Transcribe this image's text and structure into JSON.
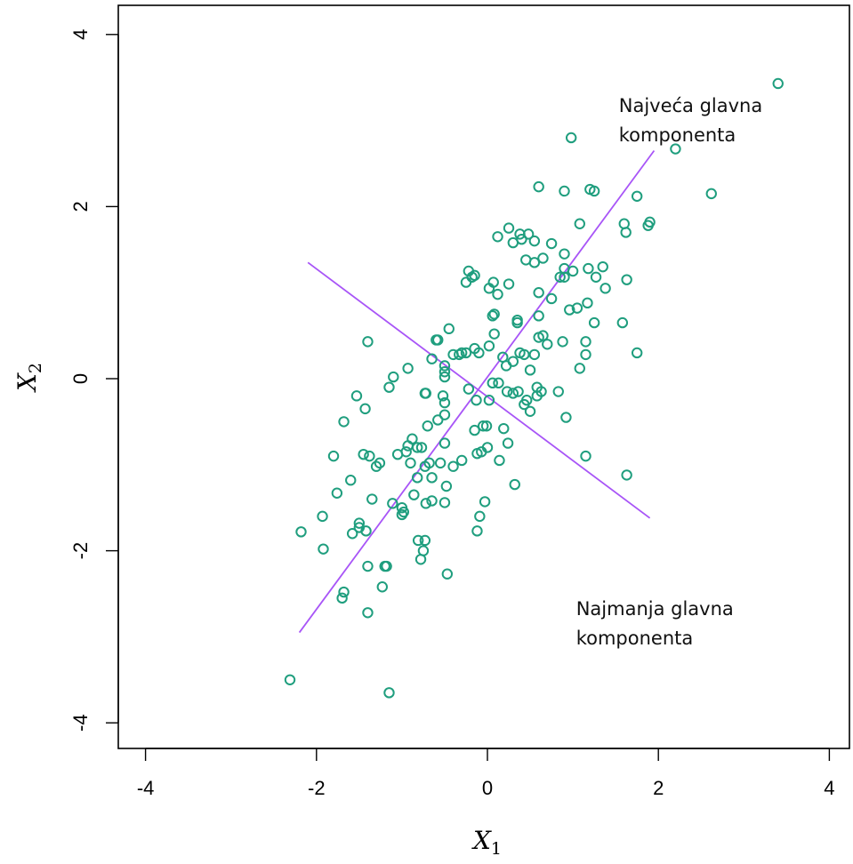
{
  "chart_data": {
    "type": "scatter",
    "title": "",
    "xlabel": "X",
    "xlabel_sub": "1",
    "ylabel": "X",
    "ylabel_sub": "2",
    "xlim": [
      -4.2,
      4.2
    ],
    "ylim": [
      -4.3,
      4.3
    ],
    "xticks": [
      -4,
      -2,
      0,
      2,
      4
    ],
    "yticks": [
      -4,
      -2,
      0,
      2,
      4
    ],
    "xtick_labels": [
      "-4",
      "-2",
      "0",
      "2",
      "4"
    ],
    "ytick_labels": [
      "-4",
      "-2",
      "0",
      "2",
      "4"
    ],
    "grid": false,
    "point_color": "#1f9e7e",
    "line_color": "#a855f7",
    "lines": [
      {
        "x": [
          -2.2,
          1.95
        ],
        "y": [
          -2.95,
          2.65
        ]
      },
      {
        "x": [
          -2.1,
          1.9
        ],
        "y": [
          1.35,
          -1.62
        ]
      }
    ],
    "annotations": [
      {
        "line1": "Najveća glavna",
        "line2": "komponenta",
        "x": 1.6,
        "y": 3.1
      },
      {
        "line1": "Najmanja glavna",
        "line2": "komponenta",
        "x": 1.1,
        "y": -2.75
      }
    ],
    "points": [
      [
        -2.31,
        -3.5
      ],
      [
        -1.15,
        -3.65
      ],
      [
        -1.7,
        -2.55
      ],
      [
        -1.68,
        -2.48
      ],
      [
        -1.4,
        -2.72
      ],
      [
        -1.23,
        -2.42
      ],
      [
        -1.2,
        -2.18
      ],
      [
        -1.18,
        -2.18
      ],
      [
        -1.4,
        -2.18
      ],
      [
        -0.78,
        -2.1
      ],
      [
        -0.75,
        -2.0
      ],
      [
        -0.47,
        -2.27
      ],
      [
        -0.81,
        -1.88
      ],
      [
        -0.73,
        -1.88
      ],
      [
        -1.92,
        -1.98
      ],
      [
        -1.93,
        -1.6
      ],
      [
        -2.18,
        -1.78
      ],
      [
        -1.58,
        -1.8
      ],
      [
        -1.5,
        -1.68
      ],
      [
        -1.42,
        -1.77
      ],
      [
        -1.5,
        -1.73
      ],
      [
        -1.35,
        -1.4
      ],
      [
        -1.11,
        -1.45
      ],
      [
        -1.0,
        -1.58
      ],
      [
        -0.98,
        -1.55
      ],
      [
        -1.0,
        -1.5
      ],
      [
        -0.86,
        -1.35
      ],
      [
        -0.65,
        -1.42
      ],
      [
        -0.72,
        -1.45
      ],
      [
        -0.5,
        -1.44
      ],
      [
        -0.12,
        -1.77
      ],
      [
        -0.09,
        -1.6
      ],
      [
        -0.03,
        -1.43
      ],
      [
        -1.76,
        -1.33
      ],
      [
        -1.6,
        -1.18
      ],
      [
        -0.82,
        -1.15
      ],
      [
        -0.65,
        -1.15
      ],
      [
        -0.48,
        -1.25
      ],
      [
        -0.4,
        -1.02
      ],
      [
        -0.3,
        -0.95
      ],
      [
        -0.73,
        -1.02
      ],
      [
        -0.68,
        -0.98
      ],
      [
        -0.55,
        -0.98
      ],
      [
        -0.9,
        -0.98
      ],
      [
        -0.95,
        -0.85
      ],
      [
        -1.05,
        -0.88
      ],
      [
        -1.3,
        -1.02
      ],
      [
        -1.26,
        -0.98
      ],
      [
        -1.38,
        -0.9
      ],
      [
        -1.45,
        -0.88
      ],
      [
        -1.8,
        -0.9
      ],
      [
        -0.88,
        -0.7
      ],
      [
        -0.93,
        -0.78
      ],
      [
        -0.82,
        -0.8
      ],
      [
        -0.77,
        -0.8
      ],
      [
        -0.5,
        -0.75
      ],
      [
        -0.7,
        -0.55
      ],
      [
        -0.58,
        -0.48
      ],
      [
        -0.5,
        -0.42
      ],
      [
        -0.12,
        -0.87
      ],
      [
        -0.07,
        -0.85
      ],
      [
        0.0,
        -0.8
      ],
      [
        0.14,
        -0.95
      ],
      [
        0.24,
        -0.75
      ],
      [
        0.32,
        -1.23
      ],
      [
        0.19,
        -0.58
      ],
      [
        -0.01,
        -0.55
      ],
      [
        -0.05,
        -0.55
      ],
      [
        -0.15,
        -0.6
      ],
      [
        -1.68,
        -0.5
      ],
      [
        -1.53,
        -0.2
      ],
      [
        -1.43,
        -0.35
      ],
      [
        -1.15,
        -0.1
      ],
      [
        -0.93,
        0.12
      ],
      [
        -0.73,
        -0.17
      ],
      [
        -0.72,
        -0.17
      ],
      [
        -0.52,
        -0.2
      ],
      [
        -0.5,
        -0.28
      ],
      [
        -0.5,
        0.02
      ],
      [
        -0.22,
        -0.12
      ],
      [
        -0.13,
        -0.25
      ],
      [
        0.02,
        -0.25
      ],
      [
        0.06,
        -0.05
      ],
      [
        0.13,
        -0.05
      ],
      [
        0.23,
        -0.15
      ],
      [
        0.3,
        -0.17
      ],
      [
        0.36,
        -0.15
      ],
      [
        0.46,
        -0.25
      ],
      [
        0.43,
        -0.3
      ],
      [
        0.5,
        -0.38
      ],
      [
        0.58,
        -0.2
      ],
      [
        0.58,
        -0.1
      ],
      [
        0.63,
        -0.15
      ],
      [
        0.83,
        -0.15
      ],
      [
        0.92,
        -0.45
      ],
      [
        1.15,
        -0.9
      ],
      [
        1.63,
        -1.12
      ],
      [
        -1.4,
        0.43
      ],
      [
        -1.1,
        0.02
      ],
      [
        -0.65,
        0.23
      ],
      [
        -0.5,
        0.15
      ],
      [
        -0.5,
        0.08
      ],
      [
        -0.33,
        0.28
      ],
      [
        -0.3,
        0.3
      ],
      [
        -0.25,
        0.3
      ],
      [
        -0.4,
        0.28
      ],
      [
        -0.58,
        0.45
      ],
      [
        -0.6,
        0.45
      ],
      [
        -0.45,
        0.58
      ],
      [
        -0.15,
        0.35
      ],
      [
        -0.1,
        0.3
      ],
      [
        0.02,
        0.38
      ],
      [
        0.08,
        0.52
      ],
      [
        0.18,
        0.25
      ],
      [
        0.22,
        0.15
      ],
      [
        0.3,
        0.2
      ],
      [
        0.38,
        0.3
      ],
      [
        0.43,
        0.28
      ],
      [
        0.5,
        0.1
      ],
      [
        0.55,
        0.28
      ],
      [
        0.6,
        0.48
      ],
      [
        0.65,
        0.5
      ],
      [
        0.7,
        0.4
      ],
      [
        0.88,
        0.43
      ],
      [
        1.08,
        0.12
      ],
      [
        1.15,
        0.28
      ],
      [
        1.15,
        0.43
      ],
      [
        1.75,
        0.3
      ],
      [
        0.35,
        0.65
      ],
      [
        0.35,
        0.68
      ],
      [
        0.6,
        0.73
      ],
      [
        0.06,
        0.73
      ],
      [
        0.08,
        0.75
      ],
      [
        0.96,
        0.8
      ],
      [
        1.05,
        0.82
      ],
      [
        1.17,
        0.88
      ],
      [
        1.25,
        0.65
      ],
      [
        1.58,
        0.65
      ],
      [
        -0.25,
        1.12
      ],
      [
        -0.18,
        1.18
      ],
      [
        -0.15,
        1.2
      ],
      [
        -0.22,
        1.25
      ],
      [
        0.02,
        1.05
      ],
      [
        0.07,
        1.12
      ],
      [
        0.12,
        0.98
      ],
      [
        0.25,
        1.1
      ],
      [
        0.6,
        1.0
      ],
      [
        0.75,
        0.93
      ],
      [
        0.85,
        1.18
      ],
      [
        0.9,
        1.18
      ],
      [
        0.9,
        1.28
      ],
      [
        1.0,
        1.25
      ],
      [
        1.18,
        1.28
      ],
      [
        1.27,
        1.18
      ],
      [
        1.35,
        1.3
      ],
      [
        1.38,
        1.05
      ],
      [
        1.63,
        1.15
      ],
      [
        0.45,
        1.38
      ],
      [
        0.55,
        1.35
      ],
      [
        0.65,
        1.4
      ],
      [
        0.9,
        1.45
      ],
      [
        0.3,
        1.58
      ],
      [
        0.4,
        1.62
      ],
      [
        0.48,
        1.68
      ],
      [
        0.55,
        1.6
      ],
      [
        0.75,
        1.57
      ],
      [
        0.12,
        1.65
      ],
      [
        0.25,
        1.75
      ],
      [
        0.38,
        1.68
      ],
      [
        1.08,
        1.8
      ],
      [
        1.6,
        1.8
      ],
      [
        1.62,
        1.7
      ],
      [
        1.88,
        1.78
      ],
      [
        1.9,
        1.82
      ],
      [
        0.6,
        2.23
      ],
      [
        0.9,
        2.18
      ],
      [
        1.2,
        2.2
      ],
      [
        1.25,
        2.18
      ],
      [
        1.75,
        2.12
      ],
      [
        2.62,
        2.15
      ],
      [
        0.98,
        2.8
      ],
      [
        2.2,
        2.67
      ],
      [
        3.4,
        3.43
      ]
    ]
  }
}
